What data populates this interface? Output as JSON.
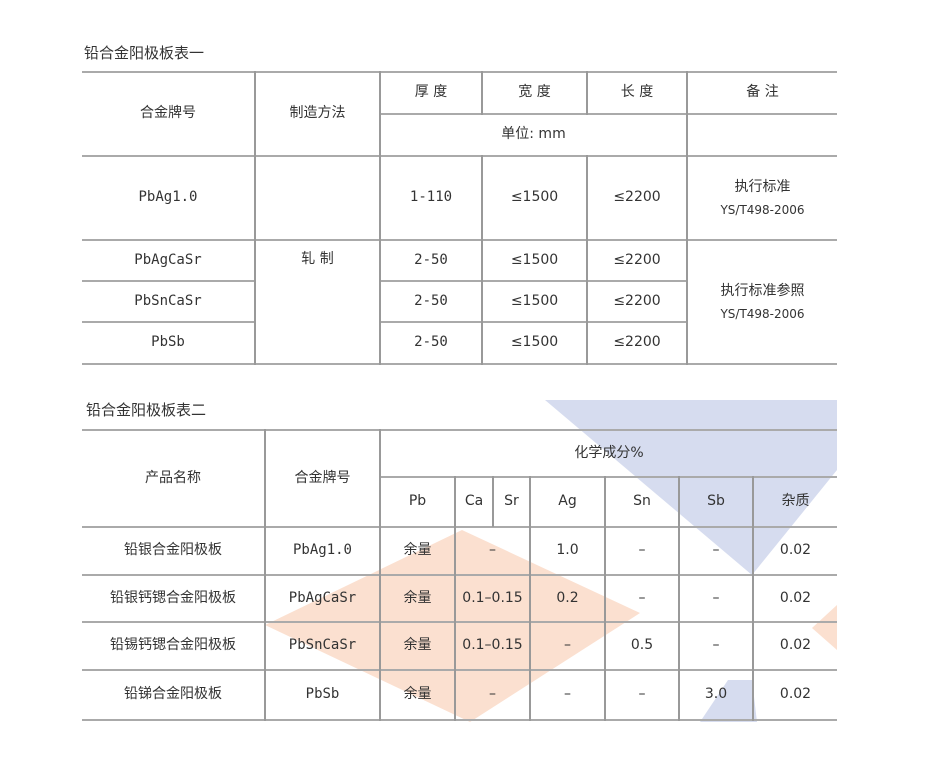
{
  "table1": {
    "title": "铅合金阳极板表一",
    "headers": {
      "alloy": "合金牌号",
      "method": "制造方法",
      "thickness": "厚 度",
      "width": "宽 度",
      "length": "长 度",
      "remark": "备 注",
      "unit": "单位: mm"
    },
    "method_value": "轧 制",
    "rows": [
      {
        "alloy": "PbAg1.0",
        "thickness": "1-110",
        "width": "≤1500",
        "length": "≤2200"
      },
      {
        "alloy": "PbAgCaSr",
        "thickness": "2-50",
        "width": "≤1500",
        "length": "≤2200"
      },
      {
        "alloy": "PbSnCaSr",
        "thickness": "2-50",
        "width": "≤1500",
        "length": "≤2200"
      },
      {
        "alloy": "PbSb",
        "thickness": "2-50",
        "width": "≤1500",
        "length": "≤2200"
      }
    ],
    "remark1": {
      "line1": "执行标准",
      "line2": "YS/T498-2006"
    },
    "remark2": {
      "line1": "执行标准参照",
      "line2": "YS/T498-2006"
    }
  },
  "table2": {
    "title": "铅合金阳极板表二",
    "headers": {
      "product": "产品名称",
      "alloy": "合金牌号",
      "composition": "化学成分%",
      "pb": "Pb",
      "ca": "Ca",
      "sr": "Sr",
      "ag": "Ag",
      "sn": "Sn",
      "sb": "Sb",
      "impurity": "杂质"
    },
    "rows": [
      {
        "product": "铅银合金阳极板",
        "alloy": "PbAg1.0",
        "pb": "余量",
        "casr": "–",
        "ag": "1.0",
        "sn": "–",
        "sb": "–",
        "impurity": "0.02"
      },
      {
        "product": "铅银钙锶合金阳极板",
        "alloy": "PbAgCaSr",
        "pb": "余量",
        "casr": "0.1–0.15",
        "ag": "0.2",
        "sn": "–",
        "sb": "–",
        "impurity": "0.02"
      },
      {
        "product": "铅锡钙锶合金阳极板",
        "alloy": "PbSnCaSr",
        "pb": "余量",
        "casr": "0.1–0.15",
        "ag": "–",
        "sn": "0.5",
        "sb": "–",
        "impurity": "0.02"
      },
      {
        "product": "铅锑合金阳极板",
        "alloy": "PbSb",
        "pb": "余量",
        "casr": "–",
        "ag": "–",
        "sn": "–",
        "sb": "3.0",
        "impurity": "0.02"
      }
    ]
  },
  "colors": {
    "blue_shape": "#d6dcef",
    "orange_shape": "#fbe0d0",
    "rule": "#aaaaaa"
  }
}
